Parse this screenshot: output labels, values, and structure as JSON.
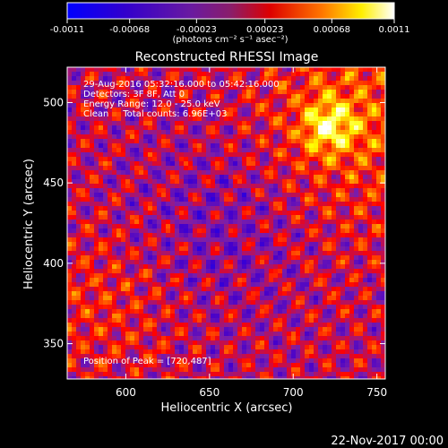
{
  "chart_data": {
    "type": "heatmap",
    "title": "Reconstructed RHESSI Image",
    "xlabel": "Heliocentric X (arcsec)",
    "ylabel": "Heliocentric Y (arcsec)",
    "xlim": [
      565,
      755
    ],
    "ylim": [
      328,
      522
    ],
    "x_ticks": [
      600,
      650,
      700,
      750
    ],
    "y_ticks": [
      350,
      400,
      450,
      500
    ],
    "colorbar": {
      "ticks": [
        "-0.0011",
        "-0.00068",
        "-0.00023",
        "0.00023",
        "0.00068",
        "0.0011"
      ],
      "vmin": -0.0011,
      "vmax": 0.0011,
      "unit": "(photons cm⁻² s⁻¹ asec⁻²)",
      "colormap": [
        "#0000ff",
        "#4400cc",
        "#7d1fa8",
        "#ff0000",
        "#ff7700",
        "#ffff00",
        "#ffffff"
      ]
    },
    "annotations": [
      "29-Aug-2016 05:32:16.000 to 05:42:16.000",
      "Detectors: 3F 8F, Att 0",
      "Energy Range: 12.0 - 25.0 keV",
      "Clean     Total counts: 6.96E+03"
    ],
    "peak_label": "Position of Peak = [720,487]",
    "peak": [
      720,
      487
    ]
  },
  "footer": {
    "timestamp": "22-Nov-2017 00:00"
  }
}
